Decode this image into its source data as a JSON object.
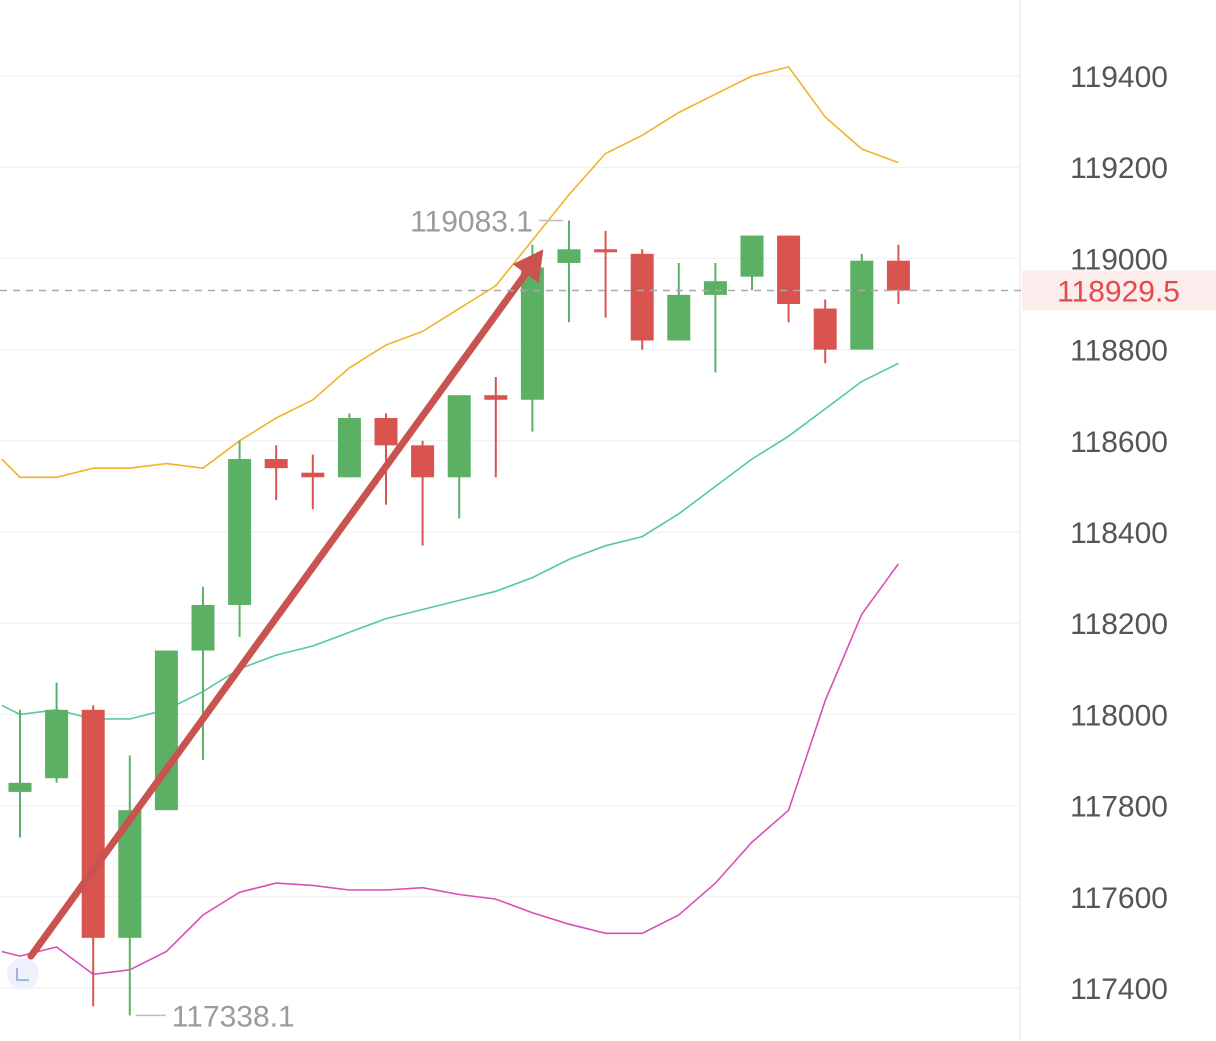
{
  "chart_data": {
    "type": "candlestick",
    "ylim": [
      117300,
      119550
    ],
    "y_ticks": [
      "119400",
      "119200",
      "119000",
      "118800",
      "118600",
      "118400",
      "118200",
      "118000",
      "117800",
      "117600",
      "117400"
    ],
    "current_price": "118929.5",
    "high_annotation": "119083.1",
    "low_annotation": "117338.1",
    "colors": {
      "up": "#5cb064",
      "down": "#d9534f",
      "upper_band": "#f0b429",
      "middle_band": "#52c9a3",
      "lower_band": "#d94fb8",
      "arrow": "#c9534f",
      "current_price_text": "#e04b4b",
      "current_price_bg": "#fdecec",
      "grid": "#eeeeee",
      "axis_text": "#555555",
      "annotation_text": "#9b9b9b"
    },
    "candles": [
      {
        "o": 117830,
        "c": 117850,
        "h": 118010,
        "l": 117730
      },
      {
        "o": 117860,
        "c": 118010,
        "h": 118070,
        "l": 117850
      },
      {
        "o": 118010,
        "c": 117510,
        "h": 118020,
        "l": 117360
      },
      {
        "o": 117510,
        "c": 117790,
        "h": 117910,
        "l": 117340
      },
      {
        "o": 117790,
        "c": 118140,
        "h": 118140,
        "l": 117790
      },
      {
        "o": 118140,
        "c": 118240,
        "h": 118280,
        "l": 117900
      },
      {
        "o": 118240,
        "c": 118560,
        "h": 118600,
        "l": 118170
      },
      {
        "o": 118560,
        "c": 118540,
        "h": 118590,
        "l": 118470
      },
      {
        "o": 118530,
        "c": 118520,
        "h": 118570,
        "l": 118450
      },
      {
        "o": 118520,
        "c": 118650,
        "h": 118660,
        "l": 118520
      },
      {
        "o": 118650,
        "c": 118590,
        "h": 118660,
        "l": 118460
      },
      {
        "o": 118590,
        "c": 118520,
        "h": 118600,
        "l": 118370
      },
      {
        "o": 118520,
        "c": 118700,
        "h": 118700,
        "l": 118430
      },
      {
        "o": 118700,
        "c": 118690,
        "h": 118740,
        "l": 118520
      },
      {
        "o": 118690,
        "c": 118980,
        "h": 119030,
        "l": 118620
      },
      {
        "o": 118990,
        "c": 119020,
        "h": 119083,
        "l": 118860
      },
      {
        "o": 119020,
        "c": 119015,
        "h": 119060,
        "l": 118870
      },
      {
        "o": 119010,
        "c": 118820,
        "h": 119020,
        "l": 118800
      },
      {
        "o": 118820,
        "c": 118920,
        "h": 118990,
        "l": 118820
      },
      {
        "o": 118920,
        "c": 118950,
        "h": 118990,
        "l": 118750
      },
      {
        "o": 118960,
        "c": 119050,
        "h": 119050,
        "l": 118930
      },
      {
        "o": 119050,
        "c": 118900,
        "h": 119050,
        "l": 118860
      },
      {
        "o": 118890,
        "c": 118800,
        "h": 118910,
        "l": 118770
      },
      {
        "o": 118800,
        "c": 118995,
        "h": 119010,
        "l": 118800
      },
      {
        "o": 118995,
        "c": 118929.5,
        "h": 119030,
        "l": 118900
      }
    ],
    "bands": {
      "x_index": [
        -0.5,
        0,
        1,
        2,
        3,
        4,
        5,
        6,
        7,
        8,
        9,
        10,
        11,
        12,
        13,
        14,
        15,
        16,
        17,
        18,
        19,
        20,
        21,
        22,
        23,
        24
      ],
      "upper": [
        118560,
        118520,
        118520,
        118540,
        118540,
        118550,
        118540,
        118600,
        118650,
        118690,
        118760,
        118810,
        118840,
        118890,
        118940,
        119040,
        119140,
        119230,
        119270,
        119320,
        119360,
        119400,
        119420,
        119310,
        119240,
        119210
      ],
      "middle": [
        118020,
        118000,
        118010,
        117990,
        117990,
        118010,
        118050,
        118100,
        118130,
        118150,
        118180,
        118210,
        118230,
        118250,
        118270,
        118300,
        118340,
        118370,
        118390,
        118440,
        118500,
        118560,
        118610,
        118670,
        118730,
        118770
      ],
      "lower": [
        117480,
        117470,
        117490,
        117430,
        117440,
        117480,
        117560,
        117610,
        117630,
        117625,
        117615,
        117615,
        117620,
        117605,
        117595,
        117565,
        117540,
        117520,
        117520,
        117560,
        117630,
        117720,
        117790,
        118030,
        118220,
        118330
      ]
    },
    "arrow": {
      "from_index": 0.3,
      "from_value": 117470,
      "to_index": 14.3,
      "to_value": 119020
    },
    "high_marker_index": 15,
    "low_marker_index": 3
  }
}
